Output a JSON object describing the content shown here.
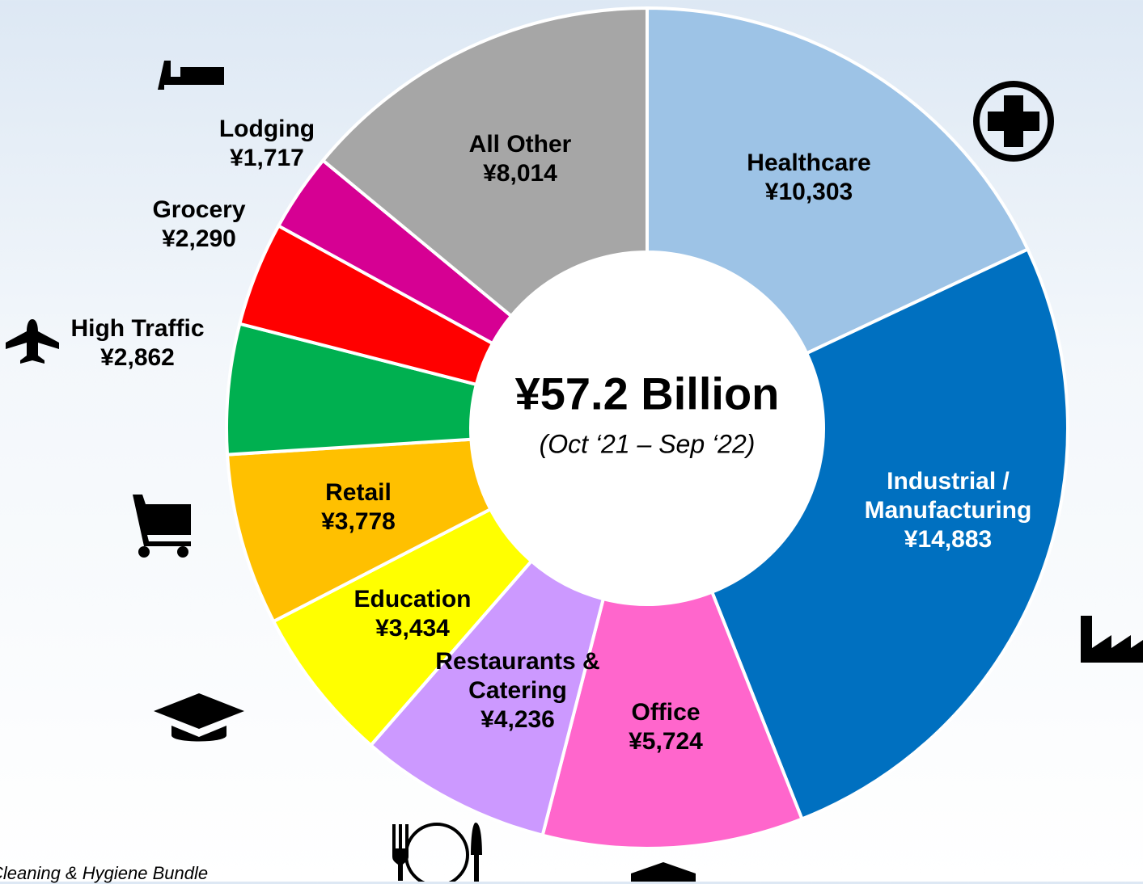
{
  "chart_data": {
    "type": "donut",
    "title": "¥57.2 Billion",
    "subtitle": "(Oct ‘21 – Sep ‘22)",
    "footnote": "Cleaning & Hygiene Bundle",
    "categories": [
      "Healthcare",
      "Industrial / Manufacturing",
      "Office",
      "Restaurants & Catering",
      "Education",
      "Retail",
      "High Traffic",
      "Grocery",
      "Lodging",
      "All Other"
    ],
    "values": [
      10303,
      14883,
      5724,
      4236,
      3434,
      3778,
      2862,
      2290,
      1717,
      8014
    ],
    "value_labels": [
      "¥10,303",
      "¥14,883",
      "¥5,724",
      "¥4,236",
      "¥3,434",
      "¥3,778",
      "¥2,862",
      "¥2,290",
      "¥1,717",
      "¥8,014"
    ],
    "colors": [
      "#9dc3e6",
      "#0070c0",
      "#ff66cc",
      "#cc99ff",
      "#ffff00",
      "#ffc000",
      "#00b050",
      "#ff0000",
      "#d60093",
      "#a6a6a6"
    ]
  }
}
